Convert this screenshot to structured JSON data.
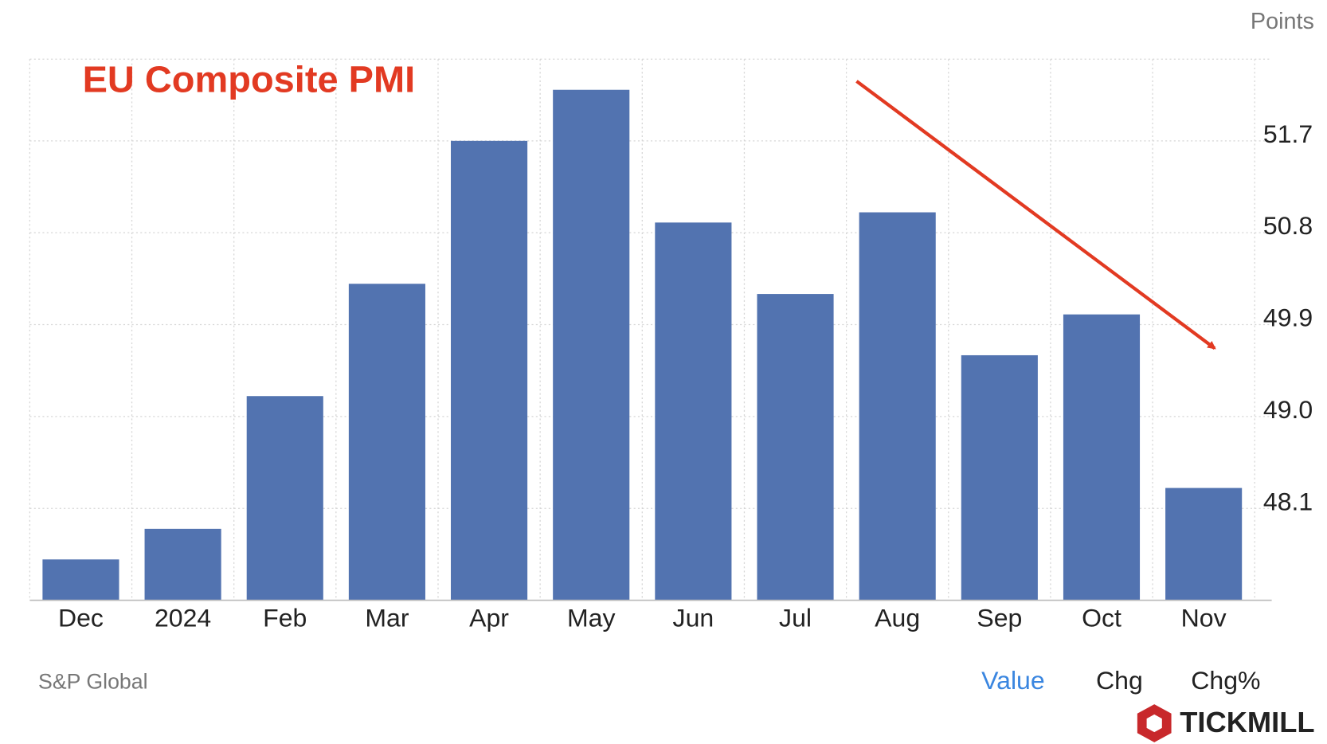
{
  "chart_data": {
    "type": "bar",
    "title": "EU Composite PMI",
    "unit_label": "Points",
    "categories": [
      "Dec",
      "2024",
      "Feb",
      "Mar",
      "Apr",
      "May",
      "Jun",
      "Jul",
      "Aug",
      "Sep",
      "Oct",
      "Nov"
    ],
    "values": [
      47.6,
      47.9,
      49.2,
      50.3,
      51.7,
      52.2,
      50.9,
      50.2,
      51.0,
      49.6,
      50.0,
      48.3
    ],
    "color": "#5273b0",
    "ylim": [
      47.2,
      52.5
    ],
    "yticks": [
      48.1,
      {
        "value": 49,
        "label": "49.0"
      },
      49.9,
      50.8,
      51.7
    ],
    "grid": true,
    "source": "S&P Global",
    "buttons": [
      "Value",
      "Chg",
      "Chg%"
    ],
    "logo": "TICKMILL"
  }
}
